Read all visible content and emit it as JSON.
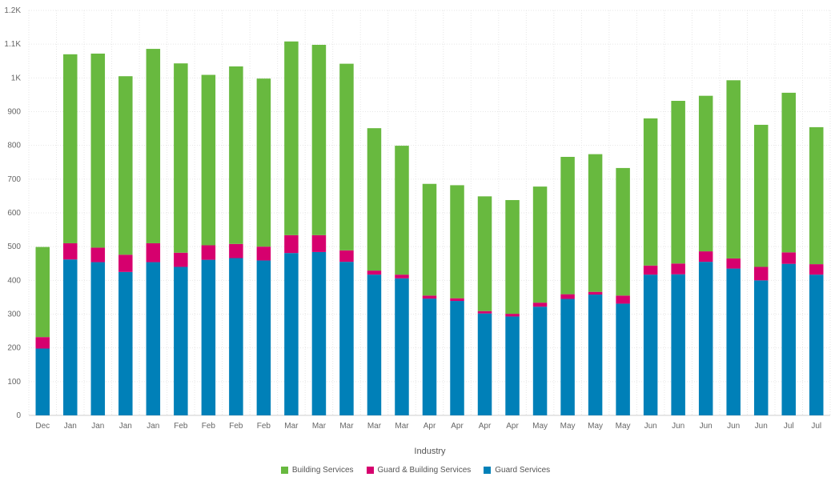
{
  "chart_data": {
    "type": "bar",
    "stacked": true,
    "xlabel": "Industry",
    "ylabel": "",
    "ylim": [
      0,
      1200
    ],
    "y_ticks": [
      {
        "value": 0,
        "label": "0"
      },
      {
        "value": 100,
        "label": "100"
      },
      {
        "value": 200,
        "label": "200"
      },
      {
        "value": 300,
        "label": "300"
      },
      {
        "value": 400,
        "label": "400"
      },
      {
        "value": 500,
        "label": "500"
      },
      {
        "value": 600,
        "label": "600"
      },
      {
        "value": 700,
        "label": "700"
      },
      {
        "value": 800,
        "label": "800"
      },
      {
        "value": 900,
        "label": "900"
      },
      {
        "value": 1000,
        "label": "1K"
      },
      {
        "value": 1100,
        "label": "1.1K"
      },
      {
        "value": 1200,
        "label": "1.2K"
      }
    ],
    "categories": [
      "Dec",
      "Jan",
      "Jan",
      "Jan",
      "Jan",
      "Feb",
      "Feb",
      "Feb",
      "Feb",
      "Mar",
      "Mar",
      "Mar",
      "Mar",
      "Mar",
      "Apr",
      "Apr",
      "Apr",
      "Apr",
      "May",
      "May",
      "May",
      "May",
      "Jun",
      "Jun",
      "Jun",
      "Jun",
      "Jun",
      "Jul",
      "Jul"
    ],
    "series": [
      {
        "name": "Guard Services",
        "color": "#0080B8",
        "values": [
          198,
          462,
          454,
          425,
          454,
          440,
          461,
          466,
          459,
          481,
          484,
          455,
          417,
          406,
          346,
          339,
          302,
          293,
          322,
          345,
          358,
          331,
          417,
          418,
          455,
          435,
          400,
          449,
          417
        ]
      },
      {
        "name": "Guard & Building Services",
        "color": "#D6006E",
        "values": [
          34,
          48,
          43,
          51,
          56,
          42,
          43,
          42,
          41,
          53,
          50,
          34,
          12,
          11,
          9,
          8,
          7,
          8,
          12,
          14,
          8,
          24,
          27,
          32,
          31,
          30,
          40,
          34,
          31
        ]
      },
      {
        "name": "Building Services",
        "color": "#68B93F",
        "values": [
          267,
          560,
          575,
          529,
          576,
          561,
          505,
          526,
          498,
          574,
          564,
          553,
          422,
          382,
          331,
          335,
          340,
          337,
          344,
          407,
          408,
          378,
          436,
          482,
          461,
          528,
          421,
          473,
          406
        ]
      }
    ],
    "legend": [
      "Building Services",
      "Guard & Building Services",
      "Guard Services"
    ],
    "legend_position": "bottom-center",
    "grid": true
  }
}
